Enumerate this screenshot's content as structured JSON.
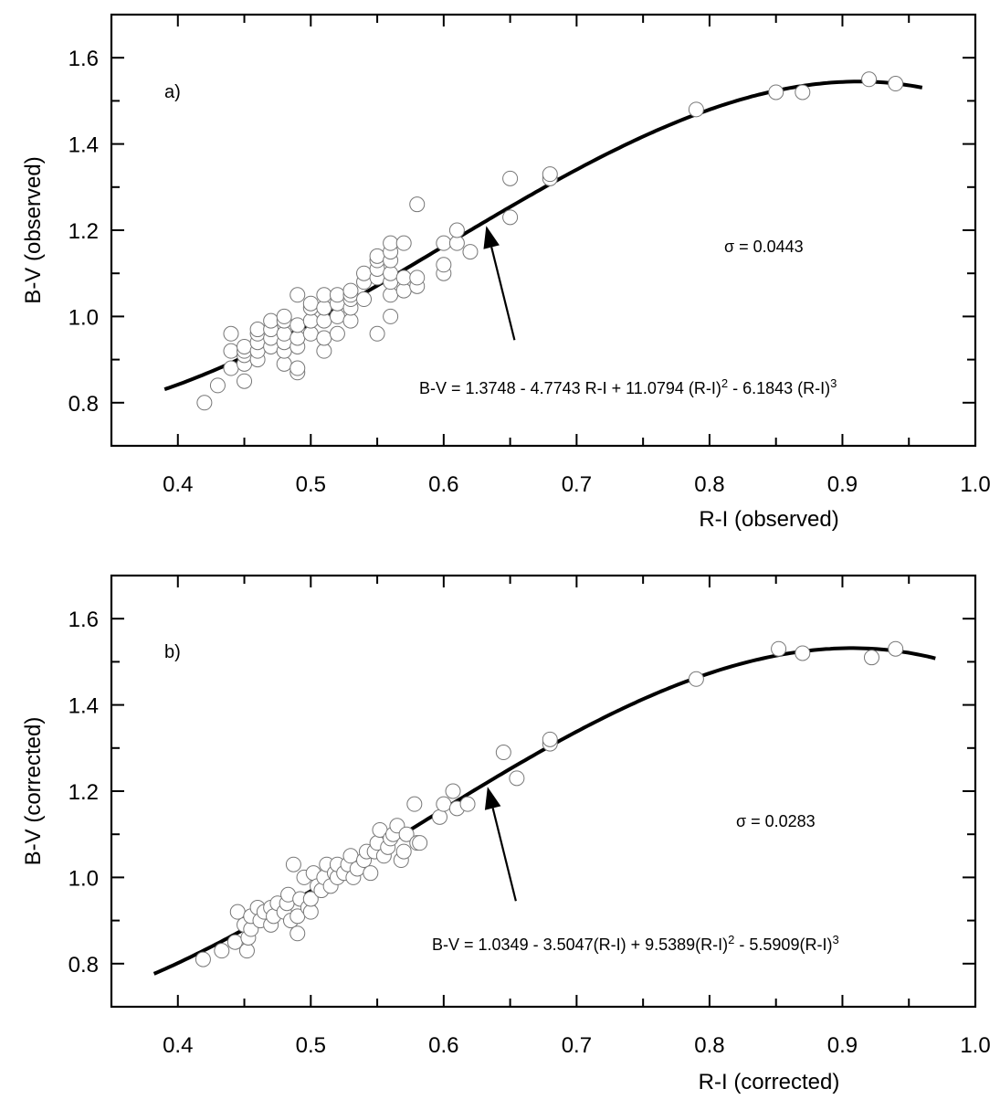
{
  "figure": {
    "panels": [
      {
        "id": "a",
        "panel_label": "a)",
        "sigma_label": "σ = 0.0443",
        "equation": {
          "text_parts": [
            {
              "t": "B-V = 1.3748 - 4.7743 R-I + 11.0794 (R-I)",
              "sup": false
            },
            {
              "t": "2",
              "sup": true
            },
            {
              "t": " - 6.1843 (R-I)",
              "sup": false
            },
            {
              "t": "3",
              "sup": true
            }
          ]
        },
        "xlabel": "R-I (observed)",
        "ylabel": "B-V (observed)"
      },
      {
        "id": "b",
        "panel_label": "b)",
        "sigma_label": "σ = 0.0283",
        "equation": {
          "text_parts": [
            {
              "t": "B-V = 1.0349 - 3.5047(R-I) + 9.5389(R-I)",
              "sup": false
            },
            {
              "t": "2",
              "sup": true
            },
            {
              "t": " - 5.5909(R-I)",
              "sup": false
            },
            {
              "t": "3",
              "sup": true
            }
          ]
        },
        "xlabel": "R-I (corrected)",
        "ylabel": "B-V (corrected)"
      }
    ]
  },
  "chart_data": [
    {
      "type": "scatter",
      "title": "a)",
      "xlabel": "R-I (observed)",
      "ylabel": "B-V (observed)",
      "xlim": [
        0.35,
        1.0
      ],
      "ylim": [
        0.7,
        1.7
      ],
      "xticks": [
        0.4,
        0.5,
        0.6,
        0.7,
        0.8,
        0.9,
        1.0
      ],
      "xtick_labels": [
        "0.4",
        "0.5",
        "0.6",
        "0.7",
        "0.8",
        "0.9",
        "1.0"
      ],
      "yticks": [
        0.8,
        1.0,
        1.2,
        1.4,
        1.6
      ],
      "ytick_labels": [
        "0.8",
        "1.0",
        "1.2",
        "1.4",
        "1.6"
      ],
      "grid": false,
      "legend": null,
      "annotations": [
        {
          "text": "σ = 0.0443",
          "x": 0.84,
          "y": 1.17
        },
        {
          "text": "B-V = 1.3748 - 4.7743 R-I + 11.0794 (R-I)^2 - 6.1843 (R-I)^3",
          "x": 0.63,
          "y": 0.85,
          "arrow_to": [
            0.632,
            1.21
          ]
        }
      ],
      "fit": {
        "name": "cubic fit",
        "coefficients": [
          1.3748,
          -4.7743,
          11.0794,
          -6.1843
        ],
        "x_range": [
          0.39,
          0.96
        ]
      },
      "series": [
        {
          "name": "stars",
          "marker": "open-circle",
          "x": [
            0.42,
            0.43,
            0.44,
            0.44,
            0.44,
            0.45,
            0.45,
            0.45,
            0.45,
            0.45,
            0.46,
            0.46,
            0.46,
            0.46,
            0.46,
            0.47,
            0.47,
            0.47,
            0.47,
            0.48,
            0.48,
            0.48,
            0.48,
            0.48,
            0.48,
            0.49,
            0.49,
            0.49,
            0.49,
            0.49,
            0.49,
            0.5,
            0.5,
            0.5,
            0.5,
            0.51,
            0.51,
            0.51,
            0.51,
            0.51,
            0.52,
            0.52,
            0.52,
            0.52,
            0.53,
            0.53,
            0.53,
            0.53,
            0.53,
            0.54,
            0.54,
            0.54,
            0.55,
            0.55,
            0.55,
            0.55,
            0.55,
            0.56,
            0.56,
            0.56,
            0.56,
            0.56,
            0.56,
            0.56,
            0.57,
            0.57,
            0.57,
            0.58,
            0.58,
            0.58,
            0.6,
            0.6,
            0.6,
            0.61,
            0.61,
            0.62,
            0.65,
            0.65,
            0.68,
            0.68,
            0.79,
            0.85,
            0.87,
            0.92,
            0.94
          ],
          "y": [
            0.8,
            0.84,
            0.88,
            0.92,
            0.96,
            0.85,
            0.89,
            0.91,
            0.92,
            0.93,
            0.9,
            0.92,
            0.94,
            0.96,
            0.97,
            0.93,
            0.95,
            0.97,
            0.99,
            0.89,
            0.92,
            0.94,
            0.96,
            0.99,
            1.0,
            0.87,
            0.88,
            0.93,
            0.95,
            0.98,
            1.05,
            0.96,
            0.99,
            1.02,
            1.03,
            0.92,
            0.95,
            0.99,
            1.02,
            1.05,
            0.96,
            1.0,
            1.03,
            1.05,
            0.99,
            1.02,
            1.04,
            1.05,
            1.06,
            1.04,
            1.08,
            1.1,
            0.96,
            1.09,
            1.11,
            1.13,
            1.14,
            1.0,
            1.05,
            1.08,
            1.1,
            1.13,
            1.15,
            1.17,
            1.06,
            1.09,
            1.17,
            1.07,
            1.09,
            1.26,
            1.1,
            1.12,
            1.17,
            1.17,
            1.2,
            1.15,
            1.23,
            1.32,
            1.32,
            1.33,
            1.48,
            1.52,
            1.52,
            1.55,
            1.54
          ]
        }
      ]
    },
    {
      "type": "scatter",
      "title": "b)",
      "xlabel": "R-I (corrected)",
      "ylabel": "B-V (corrected)",
      "xlim": [
        0.35,
        1.0
      ],
      "ylim": [
        0.7,
        1.7
      ],
      "xticks": [
        0.4,
        0.5,
        0.6,
        0.7,
        0.8,
        0.9,
        1.0
      ],
      "xtick_labels": [
        "0.4",
        "0.5",
        "0.6",
        "0.7",
        "0.8",
        "0.9",
        "1.0"
      ],
      "yticks": [
        0.8,
        1.0,
        1.2,
        1.4,
        1.6
      ],
      "ytick_labels": [
        "0.8",
        "1.0",
        "1.2",
        "1.4",
        "1.6"
      ],
      "grid": false,
      "legend": null,
      "annotations": [
        {
          "text": "σ = 0.0283",
          "x": 0.85,
          "y": 1.17
        },
        {
          "text": "B-V = 1.0349 - 3.5047(R-I) + 9.5389(R-I)^2 - 5.5909(R-I)^3",
          "x": 0.63,
          "y": 0.85,
          "arrow_to": [
            0.633,
            1.21
          ]
        }
      ],
      "fit": {
        "name": "cubic fit",
        "coefficients": [
          1.0349,
          -3.5047,
          9.5389,
          -5.5909
        ],
        "x_range": [
          0.382,
          0.97
        ]
      },
      "series": [
        {
          "name": "stars",
          "marker": "open-circle",
          "x": [
            0.419,
            0.433,
            0.443,
            0.445,
            0.45,
            0.452,
            0.453,
            0.455,
            0.455,
            0.46,
            0.462,
            0.465,
            0.47,
            0.47,
            0.472,
            0.475,
            0.48,
            0.482,
            0.483,
            0.485,
            0.487,
            0.49,
            0.49,
            0.492,
            0.495,
            0.498,
            0.5,
            0.5,
            0.502,
            0.505,
            0.508,
            0.51,
            0.512,
            0.515,
            0.518,
            0.52,
            0.52,
            0.525,
            0.528,
            0.53,
            0.532,
            0.535,
            0.54,
            0.542,
            0.545,
            0.548,
            0.55,
            0.552,
            0.555,
            0.558,
            0.56,
            0.562,
            0.565,
            0.568,
            0.57,
            0.572,
            0.578,
            0.58,
            0.582,
            0.597,
            0.6,
            0.607,
            0.61,
            0.618,
            0.645,
            0.655,
            0.68,
            0.68,
            0.79,
            0.852,
            0.87,
            0.922,
            0.94
          ],
          "y": [
            0.81,
            0.83,
            0.85,
            0.92,
            0.89,
            0.83,
            0.86,
            0.88,
            0.91,
            0.93,
            0.9,
            0.92,
            0.89,
            0.93,
            0.91,
            0.94,
            0.92,
            0.94,
            0.96,
            0.9,
            1.03,
            0.87,
            0.91,
            0.95,
            1.0,
            0.93,
            0.92,
            0.95,
            1.01,
            0.98,
            0.97,
            1.0,
            1.03,
            0.98,
            1.01,
            1.0,
            1.03,
            1.01,
            1.03,
            1.05,
            1.0,
            1.02,
            1.04,
            1.06,
            1.01,
            1.06,
            1.08,
            1.11,
            1.05,
            1.07,
            1.09,
            1.1,
            1.12,
            1.04,
            1.06,
            1.1,
            1.17,
            1.08,
            1.08,
            1.14,
            1.17,
            1.2,
            1.16,
            1.17,
            1.29,
            1.23,
            1.31,
            1.32,
            1.46,
            1.53,
            1.52,
            1.51,
            1.53
          ]
        }
      ]
    }
  ]
}
